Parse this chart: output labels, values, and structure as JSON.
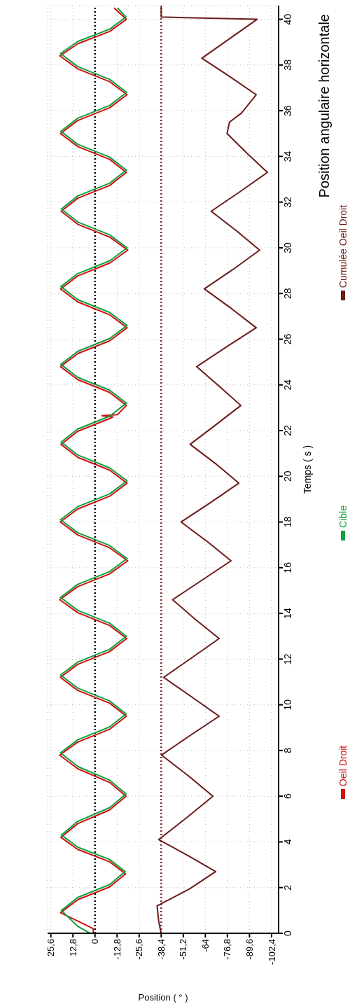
{
  "chart_data": {
    "type": "line",
    "title": "Position angulaire horizontale",
    "xlabel": "Position ( ° )",
    "ylabel": "Temps ( s )",
    "ylim": [
      0,
      40.6
    ],
    "yticks": [
      0,
      2,
      4,
      6,
      8,
      10,
      12,
      14,
      16,
      18,
      20,
      22,
      24,
      26,
      28,
      30,
      32,
      34,
      36,
      38,
      40
    ],
    "xlim": [
      27.5,
      -106.5
    ],
    "xticks": [
      {
        "value": 25.6,
        "label": "25,6"
      },
      {
        "value": 12.8,
        "label": "12,8"
      },
      0,
      {
        "value": -12.8,
        "label": "-12,8"
      },
      {
        "value": -25.6,
        "label": "-25,6"
      },
      {
        "value": -38.4,
        "label": "-38,4"
      },
      {
        "value": -51.2,
        "label": "-51,2"
      },
      -64,
      {
        "value": -76.8,
        "label": "-76,8"
      },
      {
        "value": -89.6,
        "label": "-89,6"
      },
      {
        "value": -102.4,
        "label": "-102,4"
      }
    ],
    "grid": true,
    "legend": "right",
    "marker": "none",
    "line_style": "solid",
    "ref_lines": [
      {
        "axis": "x",
        "value": 0,
        "color": "#000000",
        "line_style": "dotted"
      },
      {
        "axis": "x",
        "value": -38.4,
        "color": "#7a2a2a",
        "line_style": "dotted"
      }
    ],
    "series": [
      {
        "name": "Oeil Droit",
        "color": "#d01010",
        "values": [
          0,
          0.2,
          0.9,
          1.47,
          2.03,
          2.6,
          3.13,
          3.67,
          4.2,
          4.8,
          5.4,
          6.0,
          6.6,
          7.2,
          7.8,
          8.37,
          8.93,
          9.5,
          10.07,
          10.63,
          11.2,
          11.77,
          12.33,
          12.9,
          13.47,
          14.03,
          14.6,
          15.17,
          15.73,
          16.3,
          16.87,
          17.43,
          18.0,
          18.57,
          19.13,
          19.7,
          20.27,
          20.83,
          21.4,
          21.97,
          22.53,
          22.6,
          22.65,
          22.7,
          23.1,
          23.67,
          24.23,
          24.8,
          25.37,
          25.93,
          26.5,
          27.07,
          27.63,
          28.2,
          28.77,
          29.33,
          29.9,
          30.47,
          31.03,
          31.6,
          32.17,
          32.73,
          33.3,
          33.87,
          34.43,
          35.0,
          35.57,
          36.13,
          36.7,
          37.27,
          37.83,
          38.4,
          38.93,
          39.47,
          40.0,
          40.5
        ],
        "x": [
          1,
          1,
          20,
          10,
          -8.5,
          -17.7,
          -8.5,
          10,
          19.8,
          10,
          -8.5,
          -18,
          -8.5,
          10,
          20.5,
          10,
          -8.5,
          -18.2,
          -8.5,
          10,
          20.1,
          10,
          -8.5,
          -18.4,
          -8.5,
          10,
          20.5,
          10,
          -8.5,
          -19,
          -8.5,
          10,
          20.1,
          10,
          -8.5,
          -18.6,
          -8.5,
          10,
          19.7,
          10,
          -8.5,
          -10.5,
          -4,
          -13,
          -18.2,
          -8.5,
          10,
          20,
          10,
          -8.5,
          -18.6,
          -8.5,
          10,
          20,
          10,
          -8.5,
          -19,
          -8.5,
          10,
          19.6,
          10,
          -8.5,
          -18.2,
          -8.5,
          10,
          20,
          10,
          -8.5,
          -18.6,
          -8.5,
          10,
          20.4,
          10,
          -8.5,
          -18.2,
          -11
        ]
      },
      {
        "name": "Cible",
        "color": "#10a040",
        "values": [
          0,
          0.3,
          1.0,
          1.57,
          2.13,
          2.7,
          3.23,
          3.77,
          4.3,
          4.9,
          5.5,
          6.1,
          6.7,
          7.3,
          7.9,
          8.47,
          9.03,
          9.6,
          10.17,
          10.73,
          11.3,
          11.87,
          12.43,
          13.0,
          13.57,
          14.13,
          14.7,
          15.27,
          15.83,
          16.4,
          16.97,
          17.53,
          18.1,
          18.67,
          19.23,
          19.8,
          20.37,
          20.93,
          21.5,
          22.07,
          22.63,
          23.2,
          23.77,
          24.33,
          24.9,
          25.47,
          26.03,
          26.6,
          27.17,
          27.73,
          28.3,
          28.87,
          29.43,
          30.0,
          30.57,
          31.13,
          31.7,
          32.27,
          32.83,
          33.4,
          33.97,
          34.53,
          35.1,
          35.67,
          36.23,
          36.8,
          37.37,
          37.93,
          38.5,
          39.03,
          39.57,
          40.1,
          40.5
        ],
        "x": [
          2.8,
          10,
          19.5,
          10,
          -8.5,
          -17.5,
          -8.5,
          10,
          19.5,
          10,
          -8.5,
          -18,
          -8.5,
          10,
          20,
          10,
          -8.5,
          -18,
          -8.5,
          10,
          20,
          10,
          -8.5,
          -18.2,
          -8.5,
          10,
          20,
          10,
          -8.5,
          -18.6,
          -8.5,
          10,
          20,
          10,
          -8.5,
          -18.6,
          -8.5,
          10,
          19.6,
          10,
          -8.5,
          -18.2,
          -8.5,
          10,
          19.8,
          10,
          -8.5,
          -18.6,
          -8.5,
          10,
          19.8,
          10,
          -8.5,
          -18.6,
          -8.5,
          10,
          19.5,
          10,
          -8.5,
          -18.2,
          -8.5,
          10,
          19.8,
          10,
          -8.5,
          -18.4,
          -8.5,
          10,
          20,
          10,
          -8.5,
          -18,
          -13
        ]
      },
      {
        "name": "Cumulée Oeil Droit",
        "color": "#6b1a1a",
        "values": [
          0,
          0.5,
          1.2,
          1.95,
          2.7,
          3.4,
          4.1,
          5.05,
          6.0,
          6.9,
          7.8,
          8.65,
          9.5,
          10.35,
          11.2,
          12.05,
          12.9,
          13.75,
          14.6,
          15.45,
          16.3,
          17.15,
          18.0,
          18.85,
          19.7,
          20.55,
          21.4,
          22.25,
          23.1,
          23.95,
          24.8,
          25.65,
          26.5,
          27.35,
          28.2,
          29.05,
          29.9,
          30.75,
          31.6,
          32.45,
          33.3,
          34.15,
          35.0,
          35.5,
          35.9,
          36.7,
          37.5,
          38.3,
          39.15,
          40.0,
          40.1,
          40.6
        ],
        "x": [
          -38.4,
          -37,
          -36,
          -55,
          -70,
          -54,
          -36.9,
          -53,
          -68.4,
          -54,
          -38.6,
          -55,
          -72,
          -56,
          -39.8,
          -56,
          -72,
          -58,
          -45,
          -62,
          -78.9,
          -65,
          -49.9,
          -67,
          -83.4,
          -70,
          -55.2,
          -70,
          -84.6,
          -72,
          -59,
          -76,
          -93.5,
          -79,
          -63.4,
          -80,
          -95.5,
          -82,
          -67.4,
          -84,
          -100,
          -88,
          -76.6,
          -78,
          -85,
          -93.5,
          -78,
          -62,
          -78,
          -94,
          -38.4,
          -38.4
        ]
      }
    ]
  }
}
